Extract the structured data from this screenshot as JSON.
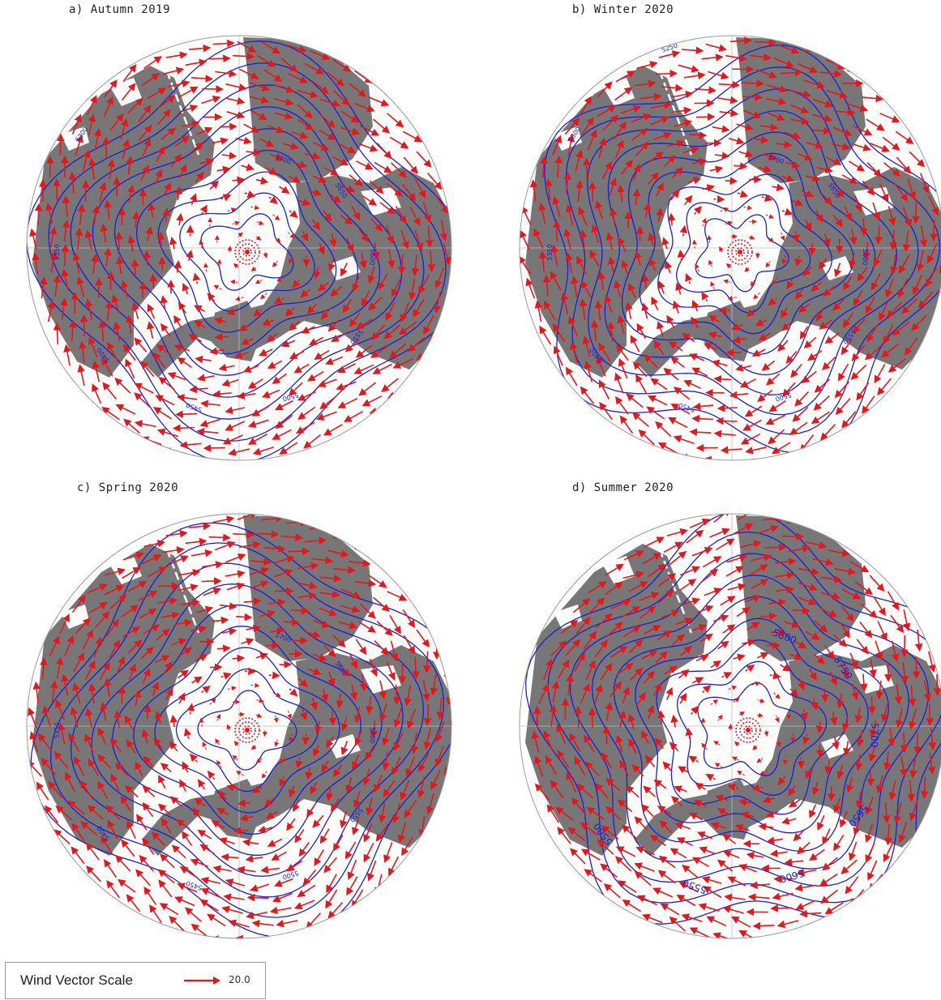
{
  "panels": [
    {
      "id": "a",
      "title": "a) Autumn 2019",
      "contour_labels": [
        "5700",
        "5650",
        "5600",
        "5550",
        "5500",
        "5450",
        "5400",
        "5350",
        "5300"
      ]
    },
    {
      "id": "b",
      "title": "b) Winter 2020",
      "contour_labels": [
        "5700",
        "5650",
        "5600",
        "5550",
        "5500",
        "5450",
        "5400",
        "5350",
        "5300",
        "5250"
      ]
    },
    {
      "id": "c",
      "title": "c) Spring 2020",
      "contour_labels": [
        "5700",
        "5650",
        "5600",
        "5550",
        "5500",
        "5450",
        "5400",
        "5350"
      ]
    },
    {
      "id": "d",
      "title": "d) Summer 2020",
      "contour_labels": [
        "5800",
        "5750",
        "5700",
        "5650",
        "5600",
        "5550",
        "5500"
      ]
    }
  ],
  "legend": {
    "label": "Wind Vector Scale",
    "value": "20.0"
  },
  "colors": {
    "land": "#777777",
    "ocean": "#ffffff",
    "wind_vectors": "#e8151b",
    "contours": "#1a1fd6",
    "grid": "#bbbbbb"
  }
}
